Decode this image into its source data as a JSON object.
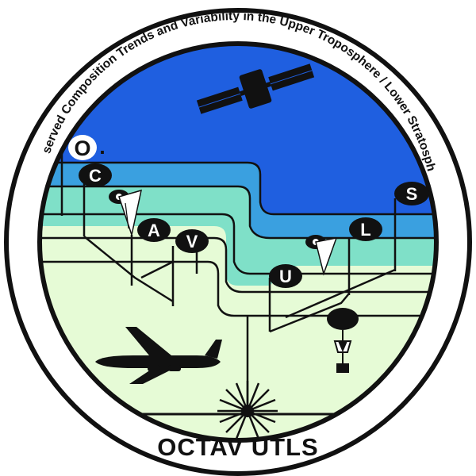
{
  "emblem": {
    "arc_title": "Observed Composition Trends and Variability in the Upper Troposphere / Lower Stratosphere",
    "bottom_title": "OCTAV UTLS",
    "letters": {
      "o1": "O",
      "o1_dot": ".",
      "c": "C",
      "a": "A",
      "v": "V",
      "u": "U",
      "l": "L",
      "s": "S"
    },
    "colors": {
      "sky_blue": "#1f5fe0",
      "mid_blue": "#3aa0e0",
      "teal": "#7fe0c8",
      "light_green": "#e6fbd6",
      "ink": "#111111"
    },
    "icons": [
      "satellite-icon",
      "airplane-icon",
      "balloon-icon",
      "laser-icon",
      "eighth-note-icon"
    ]
  }
}
